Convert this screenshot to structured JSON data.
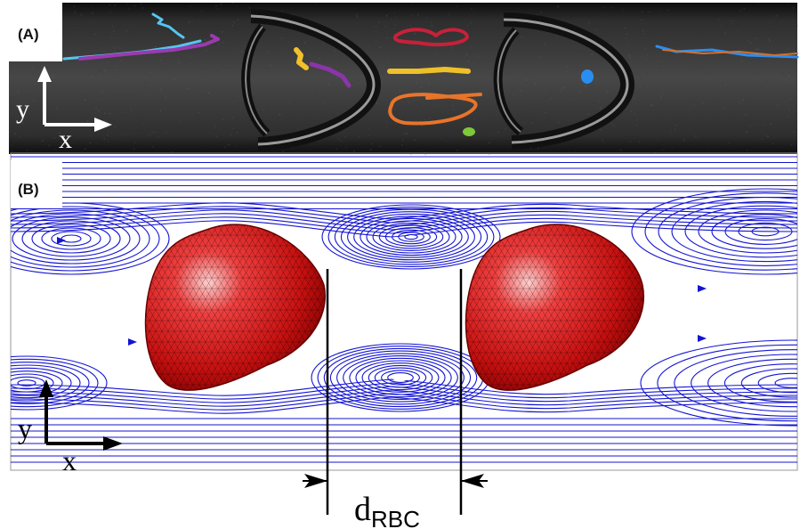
{
  "panel_a": {
    "label": "(A)",
    "axis": {
      "x": "x",
      "y": "y"
    }
  },
  "panel_b": {
    "label": "(B)",
    "axis": {
      "x": "x",
      "y": "y"
    },
    "distance_label": {
      "main": "d",
      "subscript": "RBC"
    }
  },
  "colors": {
    "streamline": "#1414d2",
    "rbc": "#d81818",
    "background_a": "#3b3b3b"
  }
}
